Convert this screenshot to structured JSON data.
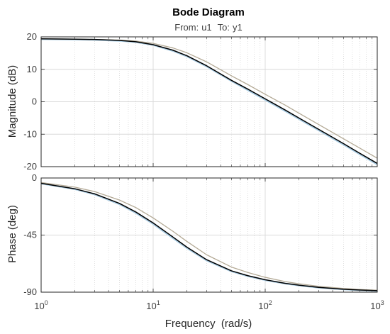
{
  "title": "Bode Diagram",
  "subtitle": {
    "from_label": "From:",
    "from_value": "u1",
    "to_label": "To:",
    "to_value": "y1"
  },
  "chart_data": [
    {
      "type": "line",
      "panel": "magnitude",
      "xscale": "log",
      "xlim": [
        1,
        1000
      ],
      "ylim": [
        -20,
        20
      ],
      "ylabel": "Magnitude (dB)",
      "yticks": [
        20,
        10,
        0,
        -10,
        -20
      ],
      "grid": true,
      "series": [
        {
          "color": "#000000",
          "x": [
            1,
            2,
            3,
            5,
            7,
            10,
            15,
            20,
            30,
            50,
            70,
            100,
            150,
            200,
            300,
            500,
            700,
            1000
          ],
          "y": [
            19.4,
            19.3,
            19.2,
            18.9,
            18.5,
            17.6,
            15.9,
            14.2,
            11.1,
            6.6,
            3.9,
            0.9,
            -2.5,
            -5.0,
            -8.5,
            -12.9,
            -15.9,
            -19.0
          ]
        },
        {
          "color": "#b4aa96",
          "x": [
            1,
            2,
            3,
            5,
            7,
            10,
            15,
            20,
            30,
            50,
            70,
            100,
            150,
            200,
            300,
            500,
            700,
            1000
          ],
          "y": [
            19.4,
            19.3,
            19.2,
            19.0,
            18.7,
            18.0,
            16.6,
            15.1,
            12.3,
            8.0,
            5.3,
            2.3,
            -1.0,
            -3.5,
            -7.0,
            -11.4,
            -14.3,
            -17.4
          ]
        },
        {
          "color": "#a9cce3",
          "x": [
            1,
            2,
            3,
            5,
            7,
            10,
            15,
            20,
            30,
            50,
            70,
            100,
            150,
            200,
            300,
            500,
            700,
            1000
          ],
          "y": [
            19.3,
            19.2,
            19.1,
            18.8,
            18.4,
            17.5,
            15.7,
            14.0,
            10.9,
            6.4,
            3.6,
            0.6,
            -2.8,
            -5.3,
            -8.8,
            -13.2,
            -16.2,
            -19.3
          ]
        }
      ]
    },
    {
      "type": "line",
      "panel": "phase",
      "xscale": "log",
      "xlim": [
        1,
        1000
      ],
      "ylim": [
        -90,
        0
      ],
      "xlabel": "Frequency  (rad/s)",
      "ylabel": "Phase (deg)",
      "xticks": [
        {
          "base": "10",
          "exp": "0"
        },
        {
          "base": "10",
          "exp": "1"
        },
        {
          "base": "10",
          "exp": "2"
        },
        {
          "base": "10",
          "exp": "3"
        }
      ],
      "yticks": [
        0,
        -45,
        -90
      ],
      "grid": true,
      "series": [
        {
          "color": "#000000",
          "x": [
            1,
            2,
            3,
            5,
            7,
            10,
            15,
            20,
            30,
            50,
            70,
            100,
            150,
            200,
            300,
            500,
            700,
            1000
          ],
          "y": [
            -4.2,
            -8.5,
            -12.5,
            -20.0,
            -26.8,
            -35.4,
            -46.5,
            -54.5,
            -64.4,
            -73.2,
            -77.0,
            -80.2,
            -83.0,
            -84.5,
            -86.2,
            -87.7,
            -88.3,
            -88.8
          ]
        },
        {
          "color": "#b4aa96",
          "x": [
            1,
            2,
            3,
            5,
            7,
            10,
            15,
            20,
            30,
            50,
            70,
            100,
            150,
            200,
            300,
            500,
            700,
            1000
          ],
          "y": [
            -3.6,
            -7.2,
            -10.7,
            -17.4,
            -23.3,
            -31.5,
            -42.0,
            -50.0,
            -60.5,
            -70.2,
            -74.5,
            -78.3,
            -81.6,
            -83.4,
            -85.4,
            -87.1,
            -87.9,
            -88.5
          ]
        },
        {
          "color": "#a9cce3",
          "x": [
            1,
            2,
            3,
            5,
            7,
            10,
            15,
            20,
            30,
            50,
            70,
            100,
            150,
            200,
            300,
            500,
            700,
            1000
          ],
          "y": [
            -4.4,
            -8.8,
            -12.9,
            -20.6,
            -27.5,
            -36.2,
            -47.3,
            -55.2,
            -65.0,
            -73.6,
            -77.4,
            -80.5,
            -83.2,
            -84.7,
            -86.4,
            -87.8,
            -88.4,
            -88.9
          ]
        }
      ]
    }
  ]
}
